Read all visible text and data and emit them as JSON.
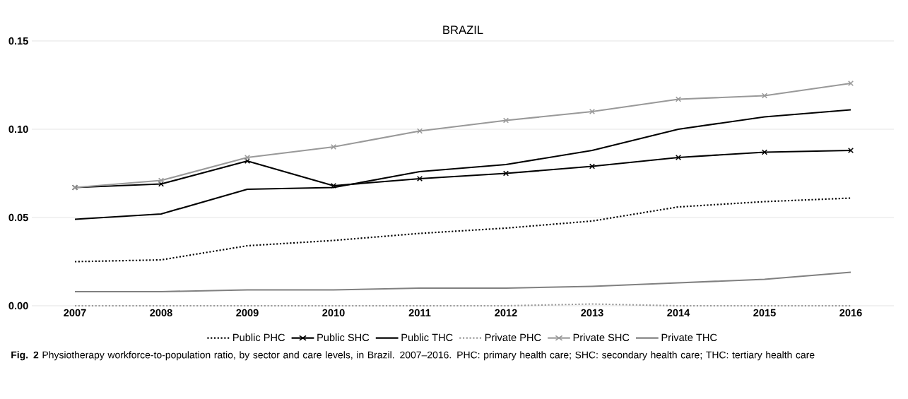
{
  "chart_data": {
    "type": "line",
    "title": "BRAZIL",
    "categories": [
      "2007",
      "2008",
      "2009",
      "2010",
      "2011",
      "2012",
      "2013",
      "2014",
      "2015",
      "2016"
    ],
    "series": [
      {
        "name": "Public PHC",
        "color": "#000000",
        "line_style": "dotted",
        "marker": "none",
        "values": [
          0.025,
          0.026,
          0.034,
          0.037,
          0.041,
          0.044,
          0.048,
          0.056,
          0.059,
          0.061
        ]
      },
      {
        "name": "Public SHC",
        "color": "#000000",
        "line_style": "solid",
        "marker": "cross",
        "values": [
          0.067,
          0.069,
          0.082,
          0.068,
          0.072,
          0.075,
          0.079,
          0.084,
          0.087,
          0.088
        ]
      },
      {
        "name": "Public THC",
        "color": "#000000",
        "line_style": "solid",
        "marker": "none",
        "values": [
          0.049,
          0.052,
          0.066,
          0.067,
          0.076,
          0.08,
          0.088,
          0.1,
          0.107,
          0.111
        ]
      },
      {
        "name": "Private PHC",
        "color": "#999999",
        "line_style": "dotted",
        "marker": "none",
        "values": [
          0.0,
          0.0,
          0.0,
          0.0,
          0.0,
          0.0,
          0.001,
          0.0,
          0.0,
          0.0
        ]
      },
      {
        "name": "Private SHC",
        "color": "#999999",
        "line_style": "solid",
        "marker": "cross",
        "values": [
          0.067,
          0.071,
          0.084,
          0.09,
          0.099,
          0.105,
          0.11,
          0.117,
          0.119,
          0.126
        ]
      },
      {
        "name": "Private THC",
        "color": "#808080",
        "line_style": "solid",
        "marker": "none",
        "values": [
          0.008,
          0.008,
          0.009,
          0.009,
          0.01,
          0.01,
          0.011,
          0.013,
          0.015,
          0.019
        ]
      }
    ],
    "ylim": [
      0,
      0.15
    ],
    "yticks": [
      {
        "value": 0,
        "label": "0.00"
      },
      {
        "value": 0.05,
        "label": "0.05"
      },
      {
        "value": 0.1,
        "label": "0.10"
      },
      {
        "value": 0.15,
        "label": "0.15"
      }
    ],
    "grid": "y",
    "legend": "bottom",
    "annotations": [
      "**Fig. 2** Physiotherapy workforce-to-population ratio, by sector and care levels, in Brazil. 2007–2016. PHC: primary health care; SHC: secondary health care; THC: tertiary health care"
    ]
  }
}
